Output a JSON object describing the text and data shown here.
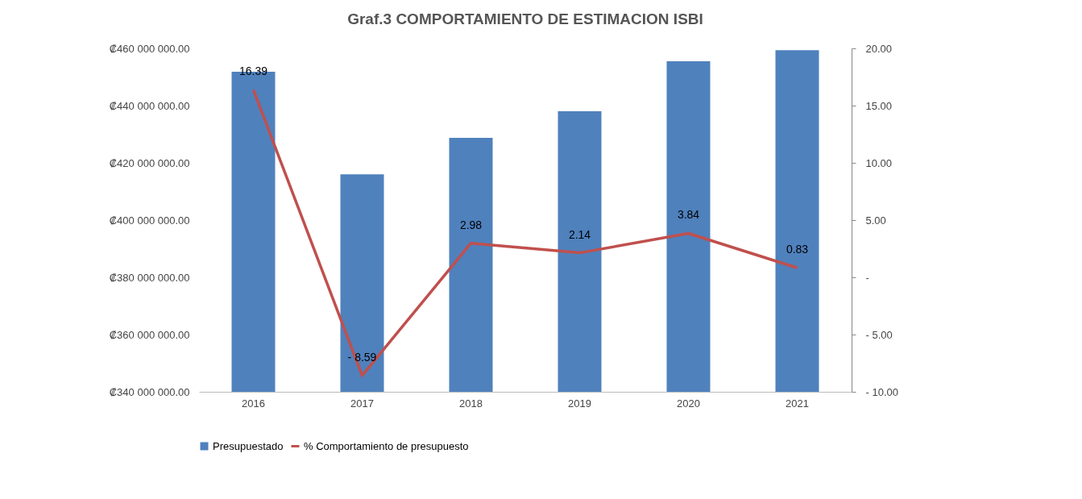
{
  "chart_data": {
    "type": "bar",
    "title": "Graf.3 COMPORTAMIENTO DE ESTIMACION ISBI",
    "categories": [
      "2016",
      "2017",
      "2018",
      "2019",
      "2020",
      "2021"
    ],
    "series": [
      {
        "name": "Presupuestado",
        "color": "#4f81bd",
        "values": [
          451800000,
          416000000,
          428700000,
          438000000,
          455500000,
          459400000
        ]
      },
      {
        "name": "% Comportamiento de presupuesto",
        "type": "line",
        "axis": "y2",
        "color": "#c0504d",
        "values": [
          16.39,
          -8.59,
          2.98,
          2.14,
          3.84,
          0.83
        ],
        "value_labels": [
          "16.39",
          "- 8.59",
          "2.98",
          "2.14",
          "3.84",
          "0.83"
        ]
      }
    ],
    "ylim": [
      340000000,
      460000000
    ],
    "yticks": [
      {
        "value": 340000000,
        "label": "₡340 000 000.00"
      },
      {
        "value": 360000000,
        "label": "₡360 000 000.00"
      },
      {
        "value": 380000000,
        "label": "₡380 000 000.00"
      },
      {
        "value": 400000000,
        "label": "₡400 000 000.00"
      },
      {
        "value": 420000000,
        "label": "₡420 000 000.00"
      },
      {
        "value": 440000000,
        "label": "₡440 000 000.00"
      },
      {
        "value": 460000000,
        "label": "₡460 000 000.00"
      }
    ],
    "y2lim": [
      -10,
      20
    ],
    "y2ticks": [
      {
        "value": -10,
        "label": "- 10.00"
      },
      {
        "value": -5,
        "label": "- 5.00"
      },
      {
        "value": 0,
        "label": "-"
      },
      {
        "value": 5,
        "label": "5.00"
      },
      {
        "value": 10,
        "label": "10.00"
      },
      {
        "value": 15,
        "label": "15.00"
      },
      {
        "value": 20,
        "label": "20.00"
      }
    ],
    "legend": "bottom",
    "grid": false
  }
}
